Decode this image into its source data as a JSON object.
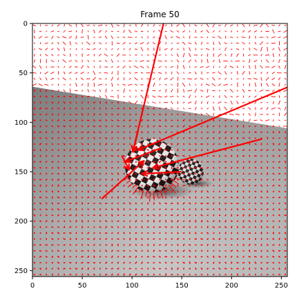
{
  "chart_data": {
    "type": "image",
    "title": "Frame 50",
    "xlim": [
      0,
      256
    ],
    "ylim": [
      256,
      0
    ],
    "x_ticks": [
      0,
      50,
      100,
      150,
      200,
      250
    ],
    "y_ticks": [
      0,
      50,
      100,
      150,
      200,
      250
    ],
    "xlabel": "",
    "ylabel": "",
    "grid": false,
    "image": {
      "background_white_region": "top",
      "floor_boundary_y_left": 64,
      "floor_boundary_y_right": 106,
      "large_sphere": {
        "cx": 120,
        "cy": 144,
        "r": 27
      },
      "small_sphere": {
        "cx": 159,
        "cy": 150,
        "r": 13
      }
    },
    "vector_field": {
      "color": "#ff0000",
      "dot_spacing": 6,
      "long_arrows": [
        {
          "x0": 101,
          "y0": 129,
          "x1": 134,
          "y1": -10
        },
        {
          "x0": 106,
          "y0": 128,
          "x1": 262,
          "y1": 62
        },
        {
          "x0": 121,
          "y0": 146,
          "x1": 230,
          "y1": 117
        },
        {
          "x0": 112,
          "y0": 139,
          "x1": 70,
          "y1": 177
        },
        {
          "x0": 93,
          "y0": 140,
          "x1": 129,
          "y1": 126
        },
        {
          "x0": 110,
          "y0": 152,
          "x1": 149,
          "y1": 150
        },
        {
          "x0": 101,
          "y0": 130,
          "x1": 106,
          "y1": 109
        },
        {
          "x0": 97,
          "y0": 148,
          "x1": 90,
          "y1": 134
        }
      ]
    }
  }
}
